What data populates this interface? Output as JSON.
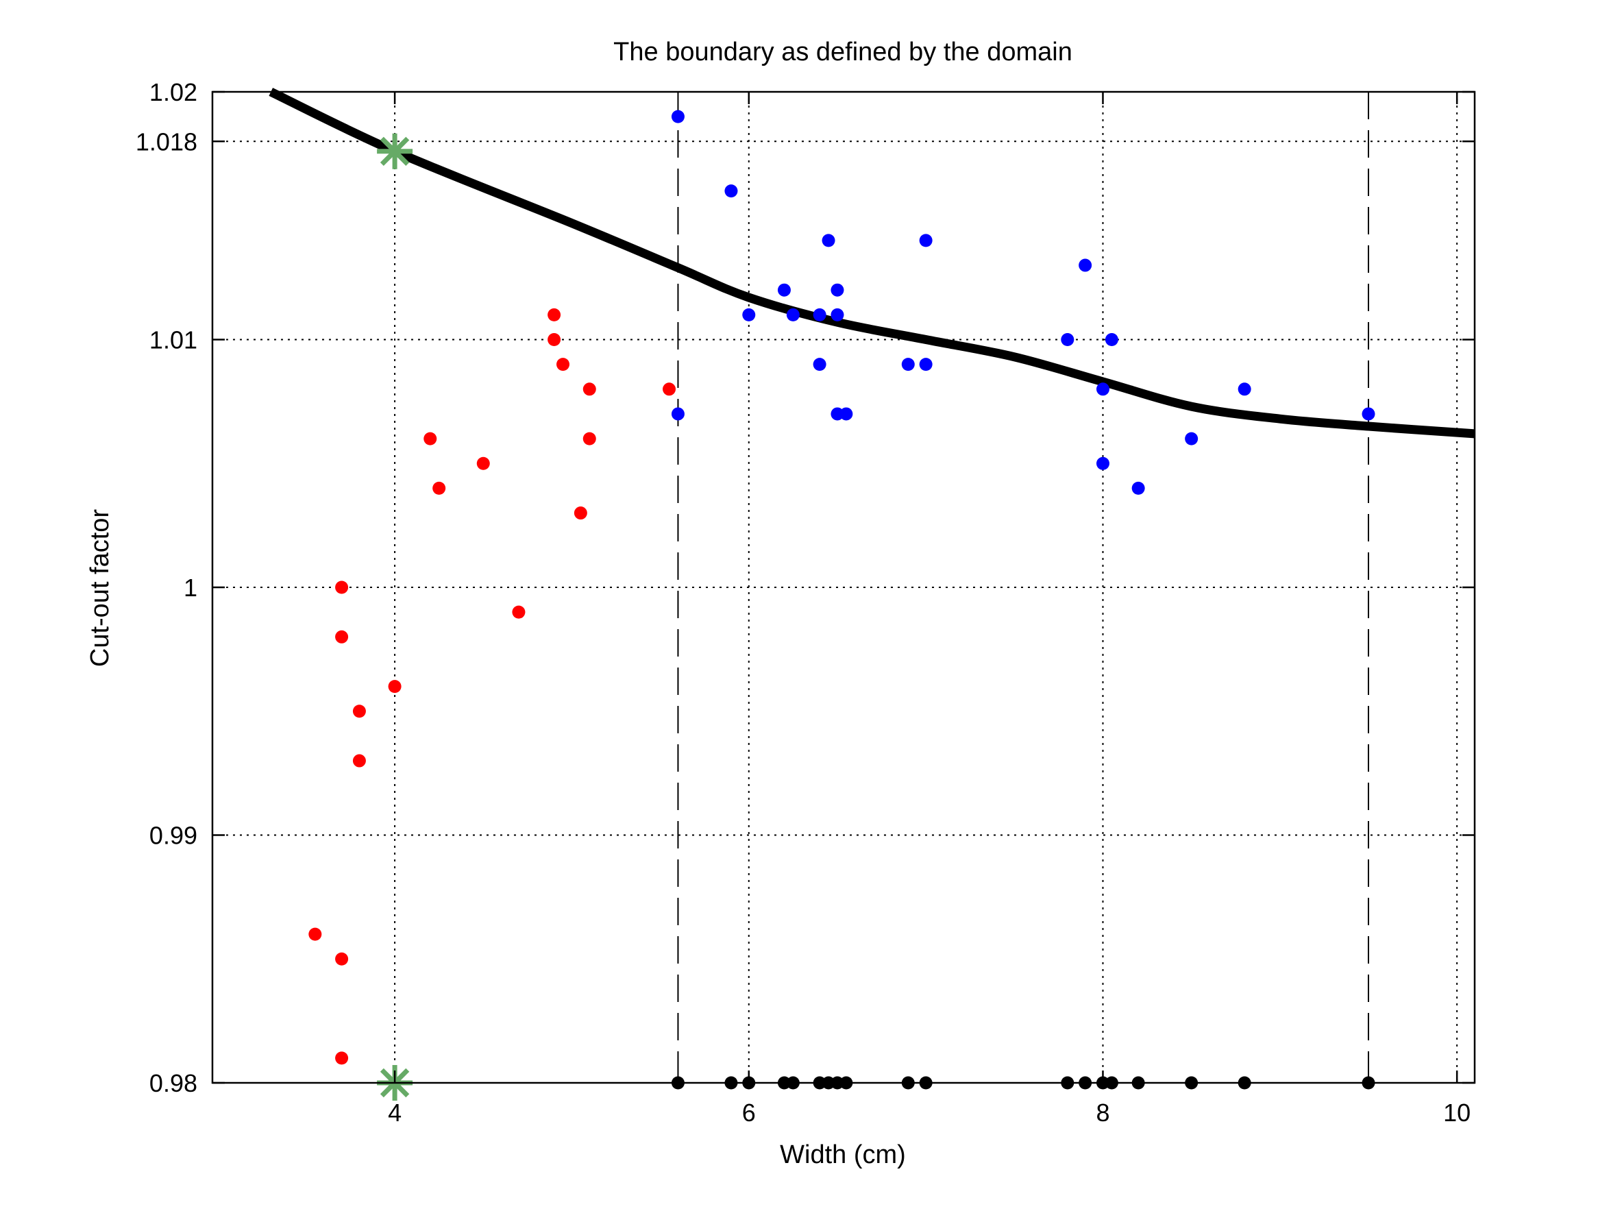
{
  "chart_data": {
    "type": "scatter",
    "title": "The boundary as defined by the domain",
    "xlabel": "Width (cm)",
    "ylabel": "Cut-out factor",
    "xlim": [
      2.97,
      10.1
    ],
    "ylim": [
      0.98,
      1.02
    ],
    "xticks": [
      4,
      6,
      8,
      10
    ],
    "xtick_labels": [
      "4",
      "6",
      "8",
      "10"
    ],
    "yticks": [
      0.98,
      0.99,
      1.0,
      1.01,
      1.018,
      1.02
    ],
    "ytick_labels": [
      "0.98",
      "0.99",
      "1",
      "1.01",
      "1.018",
      "1.02"
    ],
    "grid": "dotted",
    "colors": {
      "red_points": "#ff0000",
      "blue_points": "#0000ff",
      "black_points": "#000000",
      "star_markers": "#66aa66",
      "boundary_line": "#000000"
    },
    "boundary_curve": {
      "x": [
        3.3,
        4.0,
        5.0,
        5.6,
        6.0,
        6.5,
        7.0,
        7.5,
        8.0,
        8.5,
        9.0,
        9.5,
        10.1
      ],
      "y": [
        1.02,
        1.0176,
        1.0147,
        1.0129,
        1.0117,
        1.0107,
        1.01,
        1.0093,
        1.0083,
        1.0073,
        1.0068,
        1.0065,
        1.0062
      ]
    },
    "vertical_dashed_lines_x": [
      5.6,
      9.5
    ],
    "red_points": {
      "x": [
        4.9,
        4.9,
        4.95,
        5.1,
        5.55,
        4.2,
        5.1,
        4.5,
        4.25,
        5.05,
        3.7,
        4.7,
        3.7,
        4.0,
        3.8,
        3.8,
        3.55,
        3.7,
        3.7
      ],
      "y": [
        1.011,
        1.01,
        1.009,
        1.008,
        1.008,
        1.006,
        1.006,
        1.005,
        1.004,
        1.003,
        1.0,
        0.999,
        0.998,
        0.996,
        0.995,
        0.993,
        0.986,
        0.985,
        0.981
      ]
    },
    "blue_points": {
      "x": [
        5.6,
        5.9,
        6.45,
        7.0,
        7.9,
        6.2,
        6.5,
        6.0,
        6.25,
        6.4,
        6.5,
        7.8,
        8.05,
        6.4,
        6.9,
        7.0,
        8.0,
        8.8,
        5.6,
        6.5,
        6.55,
        9.5,
        8.5,
        8.0,
        8.2
      ],
      "y": [
        1.019,
        1.016,
        1.014,
        1.014,
        1.013,
        1.012,
        1.012,
        1.011,
        1.011,
        1.011,
        1.011,
        1.01,
        1.01,
        1.009,
        1.009,
        1.009,
        1.008,
        1.008,
        1.007,
        1.007,
        1.007,
        1.007,
        1.006,
        1.005,
        1.004
      ]
    },
    "black_points": {
      "x": [
        5.6,
        5.9,
        6.0,
        6.2,
        6.25,
        6.4,
        6.45,
        6.5,
        6.55,
        6.9,
        7.0,
        7.8,
        7.9,
        8.0,
        8.05,
        8.2,
        8.5,
        8.8,
        9.5
      ],
      "y": [
        0.98,
        0.98,
        0.98,
        0.98,
        0.98,
        0.98,
        0.98,
        0.98,
        0.98,
        0.98,
        0.98,
        0.98,
        0.98,
        0.98,
        0.98,
        0.98,
        0.98,
        0.98,
        0.98
      ]
    },
    "star_markers": {
      "x": [
        4.0,
        4.0
      ],
      "y": [
        1.0176,
        0.98
      ]
    }
  }
}
